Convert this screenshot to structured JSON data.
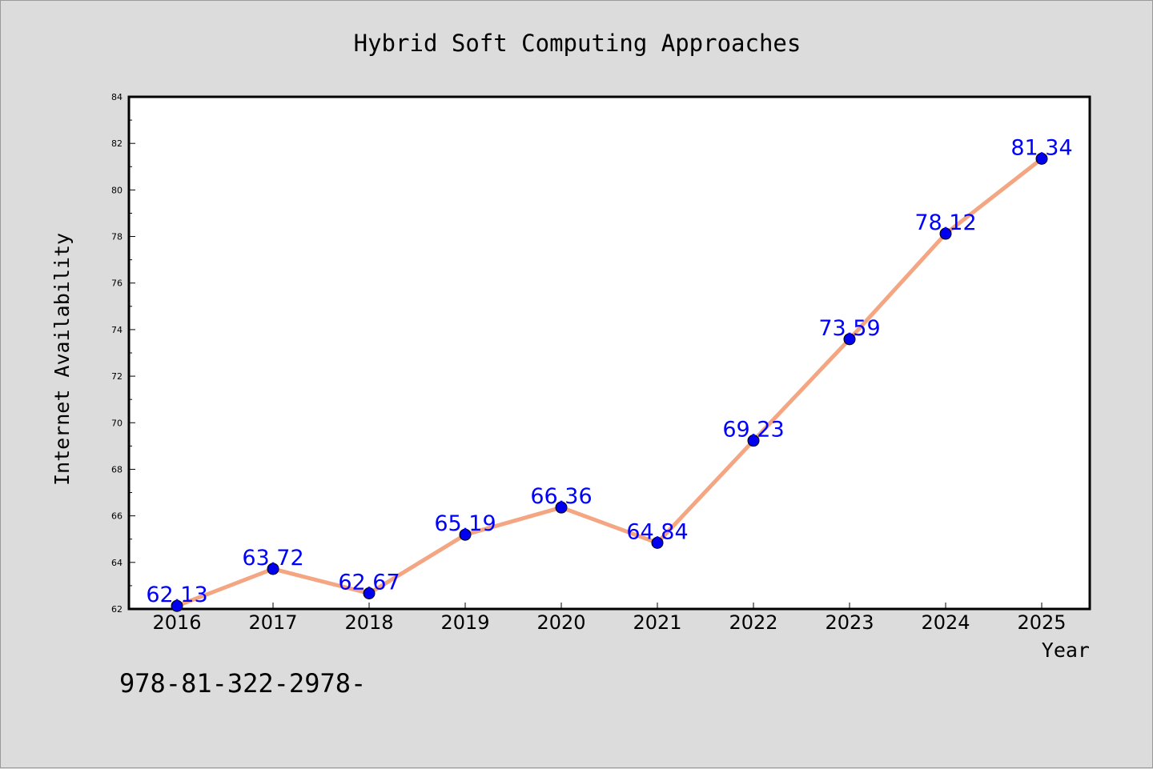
{
  "chart_data": {
    "type": "line",
    "title": "Hybrid Soft Computing Approaches",
    "xlabel": "Year",
    "ylabel": "Internet Availability",
    "x": [
      "2016",
      "2017",
      "2018",
      "2019",
      "2020",
      "2021",
      "2022",
      "2023",
      "2024",
      "2025"
    ],
    "series": [
      {
        "values": [
          62.13,
          63.72,
          62.67,
          65.19,
          66.36,
          64.84,
          69.23,
          73.59,
          78.12,
          81.34
        ],
        "line_color": "#f4a582",
        "marker_color": "#0000ee",
        "label_color": "#0000ff"
      }
    ],
    "ylim": [
      62,
      84
    ],
    "yticks": [
      "62",
      "64",
      "66",
      "68",
      "70",
      "72",
      "74",
      "76",
      "78",
      "80",
      "82",
      "84"
    ],
    "grid": false,
    "data_labels": [
      "62.13",
      "63.72",
      "62.67",
      "65.19",
      "66.36",
      "64.84",
      "69.23",
      "73.59",
      "78.12",
      "81.34"
    ]
  },
  "footer_text": "978-81-322-2978-",
  "colors": {
    "background": "#dcdcdc",
    "plot_background": "#ffffff",
    "axis": "#000000",
    "text": "#000000"
  }
}
